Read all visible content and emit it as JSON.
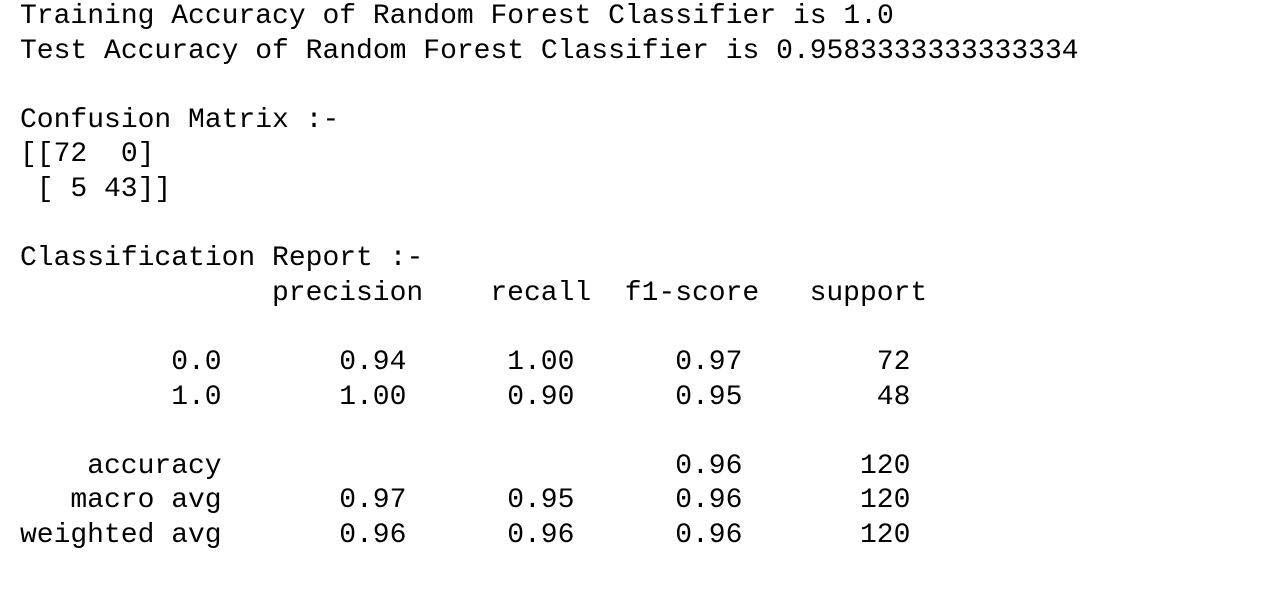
{
  "accuracy": {
    "training": "Training Accuracy of Random Forest Classifier is 1.0",
    "test": "Test Accuracy of Random Forest Classifier is 0.9583333333333334"
  },
  "confusion_matrix": {
    "title": "Confusion Matrix :-",
    "lines": [
      "[[72  0]",
      "[ 5 43]]"
    ]
  },
  "classification_report": {
    "title": "Classification Report :-",
    "headers": [
      "precision",
      "recall",
      "f1-score",
      "support"
    ],
    "rows": [
      {
        "label": "0.0",
        "precision": "0.94",
        "recall": "1.00",
        "f1-score": "0.97",
        "support": "72"
      },
      {
        "label": "1.0",
        "precision": "1.00",
        "recall": "0.90",
        "f1-score": "0.95",
        "support": "48"
      },
      {
        "label": "accuracy",
        "f1-score": "0.96",
        "support": "120"
      },
      {
        "label": "macro avg",
        "precision": "0.97",
        "recall": "0.95",
        "f1-score": "0.96",
        "support": "120"
      },
      {
        "label": "weighted avg",
        "precision": "0.96",
        "recall": "0.96",
        "f1-score": "0.96",
        "support": "120"
      }
    ]
  }
}
